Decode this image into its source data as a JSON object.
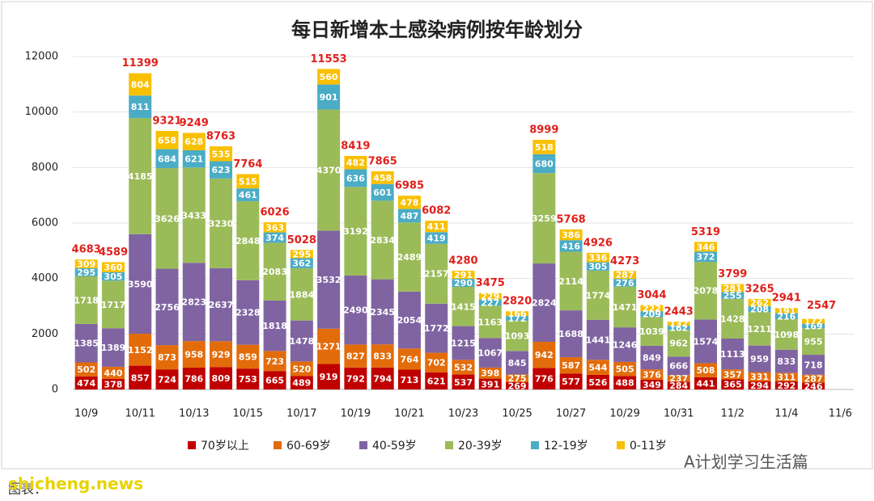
{
  "chart_data": {
    "type": "stacked_bar",
    "title": "每日新增本土感染病例按年龄划分",
    "categories": [
      "10/9",
      null,
      "10/11",
      null,
      "10/13",
      null,
      "10/15",
      null,
      "10/17",
      null,
      "10/19",
      null,
      "10/21",
      null,
      "10/23",
      null,
      "10/25",
      null,
      "10/27",
      null,
      "10/29",
      null,
      "10/31",
      null,
      "11/2",
      null,
      "11/4",
      null,
      "11/6"
    ],
    "ylim": [
      0,
      12000
    ],
    "yticks": [
      0,
      2000,
      4000,
      6000,
      8000,
      10000,
      12000
    ],
    "grid": true,
    "series": [
      {
        "name": "70岁以上",
        "color": "#c00000",
        "values": [
          474,
          378,
          857,
          724,
          786,
          809,
          753,
          665,
          489,
          919,
          792,
          794,
          713,
          621,
          537,
          391,
          269,
          776,
          577,
          526,
          488,
          349,
          284,
          441,
          365,
          294,
          292,
          246,
          null
        ]
      },
      {
        "name": "60-69岁",
        "color": "#e36c0a",
        "values": [
          502,
          440,
          1152,
          873,
          958,
          929,
          859,
          723,
          520,
          1271,
          827,
          833,
          764,
          702,
          532,
          398,
          275,
          942,
          587,
          544,
          505,
          376,
          237,
          508,
          357,
          331,
          311,
          287,
          null
        ]
      },
      {
        "name": "40-59岁",
        "color": "#8064a2",
        "values": [
          1385,
          1389,
          3590,
          2756,
          2823,
          2637,
          2328,
          1818,
          1478,
          3532,
          2490,
          2345,
          2054,
          1772,
          1215,
          1067,
          845,
          2824,
          1688,
          1441,
          1246,
          849,
          666,
          1574,
          1113,
          959,
          833,
          718,
          null
        ]
      },
      {
        "name": "20-39岁",
        "color": "#9bbb59",
        "values": [
          1718,
          1717,
          4185,
          3626,
          3433,
          3230,
          2848,
          2083,
          1884,
          4370,
          3192,
          2834,
          2489,
          2157,
          1415,
          1163,
          1093,
          3259,
          2114,
          1774,
          1471,
          1039,
          962,
          2078,
          1428,
          1211,
          1098,
          955,
          null
        ]
      },
      {
        "name": "12-19岁",
        "color": "#4bacc6",
        "values": [
          295,
          305,
          811,
          684,
          621,
          623,
          461,
          374,
          362,
          901,
          636,
          601,
          487,
          419,
          290,
          227,
          172,
          680,
          416,
          305,
          276,
          209,
          162,
          372,
          255,
          208,
          216,
          169,
          null
        ]
      },
      {
        "name": "0-11岁",
        "color": "#f9c000",
        "values": [
          309,
          360,
          804,
          658,
          628,
          535,
          515,
          363,
          295,
          560,
          482,
          458,
          478,
          411,
          291,
          229,
          166,
          518,
          386,
          336,
          287,
          222,
          132,
          346,
          281,
          262,
          191,
          172,
          null
        ]
      }
    ],
    "totals": [
      4683,
      4589,
      11399,
      9321,
      9249,
      8763,
      7764,
      6026,
      5028,
      11553,
      8419,
      7865,
      6985,
      6082,
      4280,
      3475,
      2820,
      8999,
      5768,
      4926,
      4273,
      3044,
      2443,
      5319,
      3799,
      3265,
      2941,
      2547,
      null
    ],
    "credit": "图表：",
    "watermark": "A计划学习生活篇",
    "site": "shicheng.news"
  }
}
